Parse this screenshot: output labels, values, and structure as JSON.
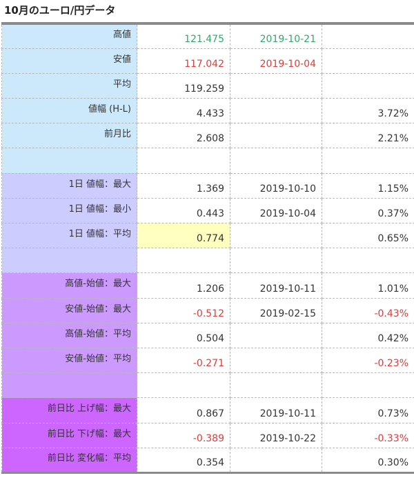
{
  "title": "10月のユーロ/円データ",
  "colors": {
    "group1": "#cce9fb",
    "group2": "#ccccff",
    "group3": "#cc99ff",
    "group4": "#cc66ff",
    "positive": "#2eaa6a",
    "negative": "#e33a3a",
    "highlight": "#ffffc0"
  },
  "rows": [
    {
      "label": "高値",
      "value": "121.475",
      "date": "2019-10-21",
      "pct": ""
    },
    {
      "label": "安値",
      "value": "117.042",
      "date": "2019-10-04",
      "pct": ""
    },
    {
      "label": "平均",
      "value": "119.259",
      "date": "",
      "pct": ""
    },
    {
      "label": "値幅 (H-L)",
      "value": "4.433",
      "date": "",
      "pct": "3.72%"
    },
    {
      "label": "前月比",
      "value": "2.608",
      "date": "",
      "pct": "2.21%"
    },
    {
      "label": "",
      "value": "",
      "date": "",
      "pct": ""
    },
    {
      "label": "1日 値幅：最大",
      "value": "1.369",
      "date": "2019-10-10",
      "pct": "1.15%"
    },
    {
      "label": "1日 値幅：最小",
      "value": "0.443",
      "date": "2019-10-04",
      "pct": "0.37%"
    },
    {
      "label": "1日 値幅：平均",
      "value": "0.774",
      "date": "",
      "pct": "0.65%"
    },
    {
      "label": "",
      "value": "",
      "date": "",
      "pct": ""
    },
    {
      "label": "高値-始値：最大",
      "value": "1.206",
      "date": "2019-10-11",
      "pct": "1.01%"
    },
    {
      "label": "安値-始値：最大",
      "value": "-0.512",
      "date": "2019-02-15",
      "pct": "-0.43%"
    },
    {
      "label": "高値-始値：平均",
      "value": "0.504",
      "date": "",
      "pct": "0.42%"
    },
    {
      "label": "安値-始値：平均",
      "value": "-0.271",
      "date": "",
      "pct": "-0.23%"
    },
    {
      "label": "",
      "value": "",
      "date": "",
      "pct": ""
    },
    {
      "label": "前日比 上げ幅：最大",
      "value": "0.867",
      "date": "2019-10-11",
      "pct": "0.73%"
    },
    {
      "label": "前日比 下げ幅：最大",
      "value": "-0.389",
      "date": "2019-10-22",
      "pct": "-0.33%"
    },
    {
      "label": "前日比 変化幅：平均",
      "value": "0.354",
      "date": "",
      "pct": "0.30%"
    }
  ]
}
